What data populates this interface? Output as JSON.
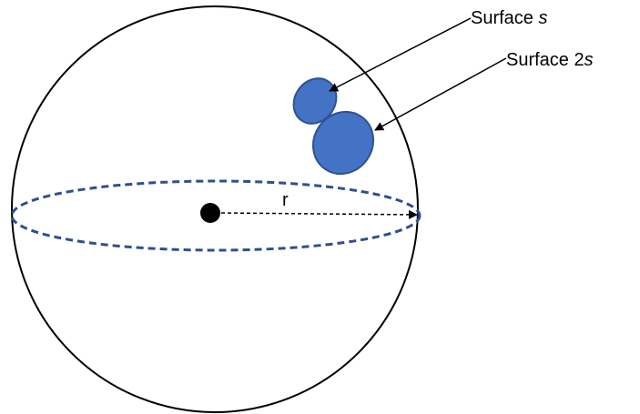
{
  "labels": {
    "surface_s_prefix": "Surface ",
    "surface_s_italic": "s",
    "surface_2s_prefix": "Surface 2",
    "surface_2s_italic": "s",
    "radius": "r"
  },
  "colors": {
    "sphere_outline": "#000000",
    "equator": "#2F4F8F",
    "surface_fill": "#4472C4",
    "surface_stroke": "#2F528F",
    "center_dot": "#000000",
    "arrow": "#000000"
  }
}
